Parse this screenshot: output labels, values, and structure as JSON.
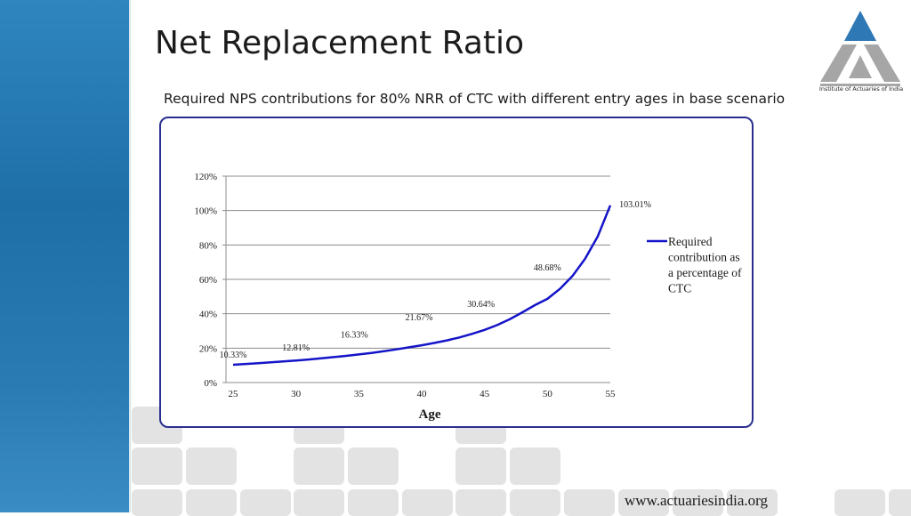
{
  "slide": {
    "title": "Net Replacement Ratio",
    "subtitle": "Required NPS contributions for 80% NRR of CTC with different entry ages in base scenario",
    "footer_url": "www.actuariesindia.org",
    "logo_text": "Institute of Actuaries of India",
    "logo_icon": "triangle-logo-icon"
  },
  "colors": {
    "band": "#2a7ab4",
    "line": "#1414c8",
    "frame": "#2a2f8f",
    "grid": "#8c8c8c",
    "tile": "#e3e3e3"
  },
  "chart_data": {
    "type": "line",
    "xlabel": "Age",
    "ylabel": "",
    "x_ticks": [
      25,
      30,
      35,
      40,
      45,
      50,
      55
    ],
    "y_ticks": [
      "0%",
      "20%",
      "40%",
      "60%",
      "80%",
      "100%",
      "120%"
    ],
    "xlim": [
      25,
      55
    ],
    "ylim": [
      0,
      120
    ],
    "grid": "horizontal",
    "legend_position": "right",
    "series": [
      {
        "name": "Required contribution as a percentage of CTC",
        "x": [
          25,
          26,
          27,
          28,
          29,
          30,
          31,
          32,
          33,
          34,
          35,
          36,
          37,
          38,
          39,
          40,
          41,
          42,
          43,
          44,
          45,
          46,
          47,
          48,
          49,
          50,
          51,
          52,
          53,
          54,
          55
        ],
        "y": [
          10.33,
          10.8,
          11.3,
          11.8,
          12.3,
          12.81,
          13.4,
          14.1,
          14.8,
          15.5,
          16.33,
          17.2,
          18.2,
          19.3,
          20.5,
          21.67,
          23.0,
          24.5,
          26.2,
          28.3,
          30.64,
          33.4,
          36.8,
          40.8,
          45.0,
          48.68,
          54.5,
          62.0,
          72.0,
          85.0,
          103.01
        ]
      }
    ],
    "data_labels": [
      {
        "x": 25,
        "text": "10.33%"
      },
      {
        "x": 30,
        "text": "12.81%"
      },
      {
        "x": 35,
        "text": "16.33%"
      },
      {
        "x": 40,
        "text": "21.67%"
      },
      {
        "x": 45,
        "text": "30.64%"
      },
      {
        "x": 50,
        "text": "48.68%"
      },
      {
        "x": 55,
        "text": "103.01%"
      }
    ],
    "legend": {
      "lines": [
        "Required",
        "contribution as",
        "a percentage of",
        "CTC"
      ]
    }
  }
}
